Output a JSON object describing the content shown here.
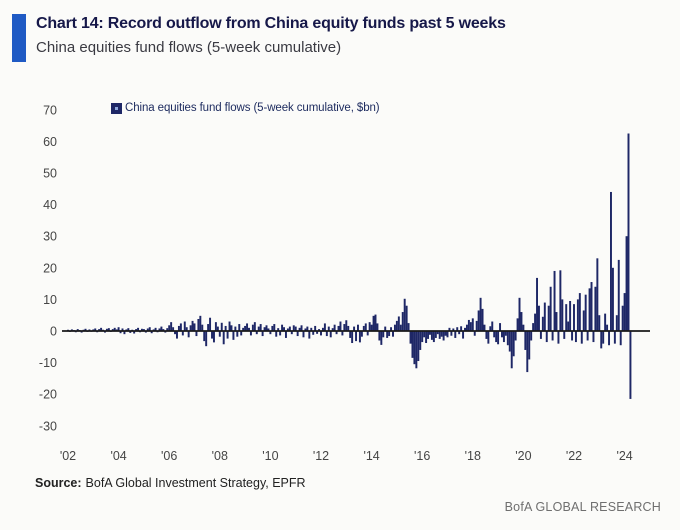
{
  "header": {
    "title": "Chart 14: Record outflow from China equity funds past 5 weeks",
    "subtitle": "China equities fund flows (5-week cumulative)"
  },
  "legend": {
    "label": "China equities fund flows (5-week cumulative, $bn)"
  },
  "footer": {
    "source_label": "Source:",
    "source_text": "BofA Global Investment Strategy, EPFR",
    "brand": "BofA GLOBAL RESEARCH"
  },
  "colors": {
    "accent_blue": "#1f5ac4",
    "bar_navy": "#1e2766",
    "title_navy": "#161849",
    "subtitle_gray": "#3a3a42",
    "legend_navy": "#1c2a5e",
    "axis_black": "#1a1a1a",
    "tick_gray": "#454545",
    "source_dark": "#222222",
    "brand_gray": "#6f6f6f"
  },
  "chart_data": {
    "type": "bar",
    "title": "China equities fund flows (5-week cumulative)",
    "legend_entries": [
      "China equities fund flows (5-week cumulative, $bn)"
    ],
    "xlabel": "",
    "ylabel": "$bn",
    "ylim": [
      -30,
      70
    ],
    "yticks": [
      70,
      60,
      50,
      40,
      30,
      20,
      10,
      0,
      -10,
      -20,
      -30
    ],
    "xticks": [
      "'02",
      "'04",
      "'06",
      "'08",
      "'10",
      "'12",
      "'14",
      "'16",
      "'18",
      "'20",
      "'22",
      "'24"
    ],
    "xtick_years": [
      2002,
      2004,
      2006,
      2008,
      2010,
      2012,
      2014,
      2016,
      2018,
      2020,
      2022,
      2024
    ],
    "grid": false,
    "legend_position": "top-left",
    "x_start_year": 2002.0,
    "x_step_years": 0.076923,
    "values": [
      0.4,
      -0.3,
      0.5,
      0.3,
      -0.4,
      0.6,
      0.3,
      -0.5,
      0.4,
      0.7,
      -0.3,
      0.5,
      -0.2,
      0.5,
      0.8,
      -0.4,
      0.6,
      1.0,
      0.4,
      -0.5,
      0.7,
      0.9,
      -0.3,
      0.6,
      1.0,
      0.5,
      1.2,
      -0.7,
      0.8,
      -1.0,
      0.5,
      0.9,
      -0.6,
      0.4,
      -0.8,
      0.6,
      1.0,
      -0.4,
      0.7,
      0.6,
      -0.5,
      0.8,
      1.2,
      -0.7,
      0.5,
      1.0,
      -0.4,
      0.8,
      1.4,
      0.6,
      -0.5,
      0.9,
      1.8,
      2.8,
      1.2,
      -1.0,
      -2.4,
      1.6,
      2.4,
      -1.4,
      3.0,
      1.2,
      -2.0,
      1.8,
      3.2,
      2.4,
      -1.6,
      3.8,
      4.8,
      2.0,
      -3.2,
      -4.8,
      2.2,
      4.2,
      -2.4,
      -3.6,
      2.8,
      1.4,
      -1.8,
      2.6,
      -4.2,
      1.6,
      -2.4,
      3.0,
      1.8,
      -2.8,
      1.4,
      -1.8,
      2.2,
      -1.4,
      1.0,
      1.6,
      2.4,
      1.0,
      -1.4,
      2.0,
      2.8,
      -1.0,
      1.4,
      2.2,
      -1.6,
      1.2,
      1.8,
      0.8,
      -1.0,
      1.6,
      2.2,
      -1.8,
      0.9,
      -1.4,
      2.0,
      1.2,
      -2.2,
      0.8,
      1.4,
      -1.0,
      1.8,
      1.4,
      -1.6,
      1.0,
      1.8,
      -2.0,
      0.8,
      1.4,
      -2.4,
      1.0,
      -1.2,
      1.6,
      -0.9,
      0.6,
      -1.4,
      1.0,
      2.4,
      -1.6,
      1.4,
      -2.0,
      0.9,
      2.0,
      -1.0,
      1.6,
      3.0,
      -1.4,
      2.2,
      3.4,
      1.6,
      -2.2,
      -3.8,
      1.4,
      -3.2,
      2.0,
      -3.6,
      -1.8,
      1.6,
      2.4,
      -1.4,
      2.8,
      2.0,
      4.8,
      5.2,
      2.4,
      -3.0,
      -4.4,
      -2.0,
      1.4,
      -2.2,
      -1.6,
      1.2,
      -1.8,
      2.0,
      3.2,
      4.6,
      2.0,
      6.0,
      10.2,
      8.0,
      2.5,
      -4.0,
      -8.5,
      -10.5,
      -11.8,
      -9.5,
      -6.0,
      -3.5,
      -2.0,
      -3.8,
      -2.5,
      -1.2,
      -2.8,
      -3.5,
      -2.2,
      -1.0,
      -2.5,
      -1.8,
      -3.0,
      -1.5,
      -2.0,
      1.0,
      -1.5,
      0.8,
      -2.2,
      1.2,
      -1.0,
      1.5,
      -2.4,
      1.0,
      2.0,
      3.5,
      2.8,
      4.0,
      -1.5,
      3.2,
      6.5,
      10.5,
      7.0,
      2.0,
      -2.5,
      -4.0,
      1.5,
      3.0,
      -2.0,
      -3.5,
      -4.2,
      2.5,
      -2.0,
      -3.5,
      -1.5,
      -4.5,
      -6.5,
      -11.8,
      -8.0,
      -3.0,
      4.0,
      10.5,
      6.0,
      2.0,
      -6.0,
      -13.0,
      -9.0,
      -3.0,
      2.5,
      5.5,
      16.8,
      8.0,
      -2.5,
      4.5,
      9.0,
      -3.5,
      8.0,
      14.0,
      -3.0,
      19.0,
      6.0,
      -4.0,
      19.2,
      10.0,
      -2.5,
      8.5,
      3.0,
      9.5,
      -3.0,
      8.5,
      -3.5,
      10.0,
      12.0,
      -4.0,
      6.5,
      11.5,
      -3.0,
      13.5,
      15.5,
      -3.5,
      14.0,
      23.0,
      5.0,
      -5.5,
      -4.0,
      5.5,
      2.0,
      -4.5,
      44.0,
      20.0,
      -4.0,
      5.0,
      22.5,
      -4.5,
      8.0,
      12.0,
      30.0,
      62.5,
      -21.5
    ]
  }
}
